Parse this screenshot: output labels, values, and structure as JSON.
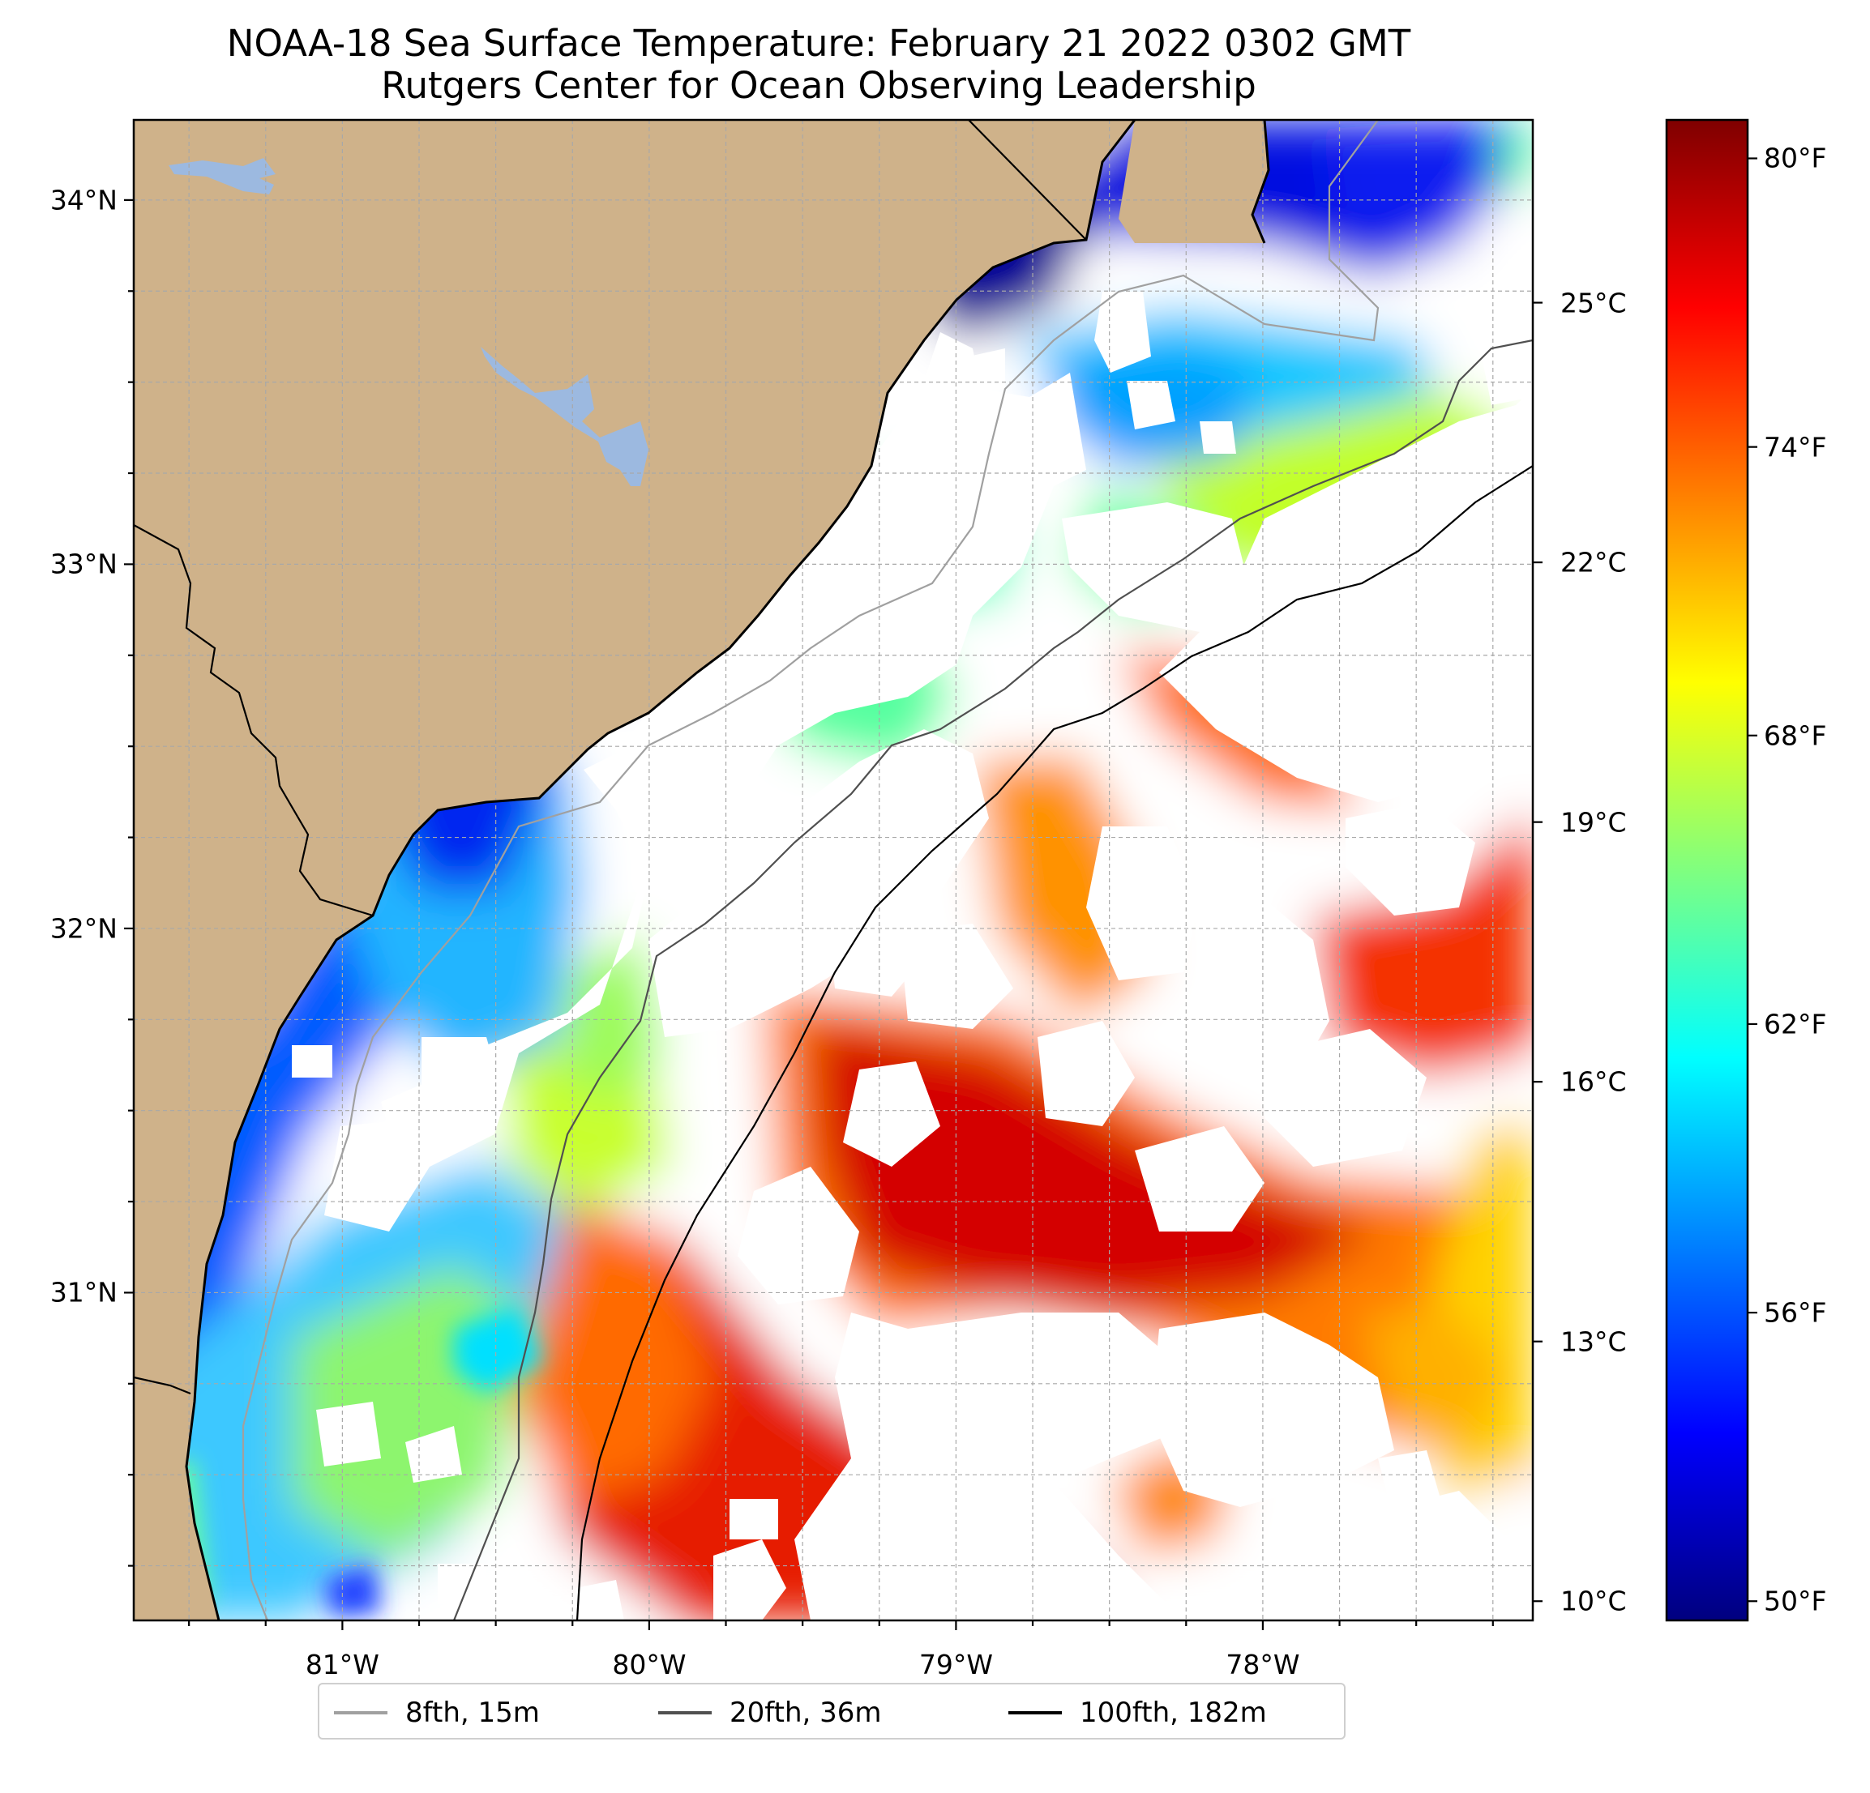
{
  "title": {
    "line1": "NOAA-18 Sea Surface Temperature: February 21 2022 0302 GMT",
    "line2": "Rutgers Center for Ocean Observing Leadership"
  },
  "map": {
    "land_color": "#cfb28a",
    "water_body_color": "#9cb9e0",
    "extent": {
      "lon": [
        -81.68,
        -77.12
      ],
      "lat": [
        30.1,
        34.22
      ]
    },
    "lon_ticks": [
      {
        "value": -81,
        "label": "81°W"
      },
      {
        "value": -80,
        "label": "80°W"
      },
      {
        "value": -79,
        "label": "79°W"
      },
      {
        "value": -78,
        "label": "78°W"
      }
    ],
    "lat_ticks": [
      {
        "value": 34,
        "label": "34°N"
      },
      {
        "value": 33,
        "label": "33°N"
      },
      {
        "value": 32,
        "label": "32°N"
      },
      {
        "value": 31,
        "label": "31°N"
      }
    ],
    "gridlines": true
  },
  "colorbar": {
    "colormap": "jet",
    "range_f": [
      49.6,
      80.8
    ],
    "celsius_ticks": [
      {
        "value": 25,
        "label": "25°C"
      },
      {
        "value": 22,
        "label": "22°C"
      },
      {
        "value": 19,
        "label": "19°C"
      },
      {
        "value": 16,
        "label": "16°C"
      },
      {
        "value": 13,
        "label": "13°C"
      },
      {
        "value": 10,
        "label": "10°C"
      }
    ],
    "fahrenheit_ticks": [
      {
        "value": 80,
        "label": "80°F"
      },
      {
        "value": 74,
        "label": "74°F"
      },
      {
        "value": 68,
        "label": "68°F"
      },
      {
        "value": 62,
        "label": "62°F"
      },
      {
        "value": 56,
        "label": "56°F"
      },
      {
        "value": 50,
        "label": "50°F"
      }
    ]
  },
  "legend": {
    "items": [
      {
        "label": "8fth, 15m",
        "color": "#a0a0a0"
      },
      {
        "label": "20fth, 36m",
        "color": "#505050"
      },
      {
        "label": "100fth, 182m",
        "color": "#000000"
      }
    ]
  }
}
